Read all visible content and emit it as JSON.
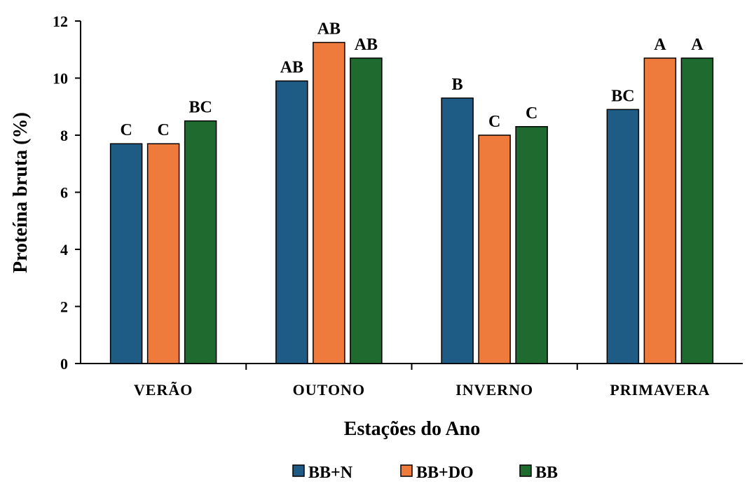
{
  "chart_data": {
    "type": "bar",
    "title": "",
    "xlabel": "Estações do Ano",
    "ylabel": "Proteína bruta (%)",
    "ylim": [
      0,
      12
    ],
    "yticks": [
      0,
      2,
      4,
      6,
      8,
      10,
      12
    ],
    "grid": false,
    "legend_position": "bottom",
    "categories": [
      "VERÃO",
      "OUTONO",
      "INVERNO",
      "PRIMAVERA"
    ],
    "series": [
      {
        "name": "BB+N",
        "color": "#1f5c85",
        "values": [
          7.7,
          9.9,
          9.3,
          8.9
        ],
        "labels": [
          "C",
          "AB",
          "B",
          "BC"
        ]
      },
      {
        "name": "BB+DO",
        "color": "#ee7a3c",
        "values": [
          7.7,
          11.25,
          8.0,
          10.7
        ],
        "labels": [
          "C",
          "AB",
          "C",
          "A"
        ]
      },
      {
        "name": "BB",
        "color": "#1f6a2e",
        "values": [
          8.5,
          10.7,
          8.3,
          10.7
        ],
        "labels": [
          "BC",
          "AB",
          "C",
          "A"
        ]
      }
    ]
  }
}
